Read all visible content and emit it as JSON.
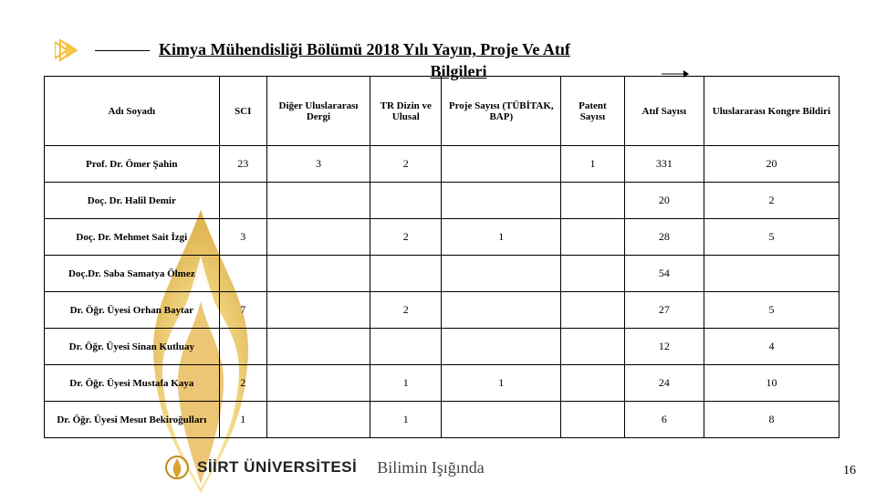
{
  "colors": {
    "accent": "#f4c13a",
    "flame_outer": "#f6e08a",
    "flame_inner": "#d9a32b",
    "text": "#000000",
    "border": "#000000"
  },
  "title": {
    "line1": "Kimya Mühendisliği Bölümü 2018 Yılı Yayın, Proje Ve Atıf",
    "line2": "Bilgileri"
  },
  "table": {
    "columns": [
      "Adı Soyadı",
      "SCI",
      "Diğer Uluslararası Dergi",
      "TR Dizin ve Ulusal",
      "Proje Sayısı (TÜBİTAK, BAP)",
      "Patent Sayısı",
      "Atıf Sayısı",
      "Uluslararası Kongre Bildiri"
    ],
    "col_widths_pct": [
      22,
      6,
      13,
      9,
      15,
      8,
      10,
      17
    ],
    "rows": [
      {
        "c": [
          "Prof. Dr. Ömer Şahin",
          "23",
          "3",
          "2",
          "",
          "1",
          "331",
          "20"
        ]
      },
      {
        "c": [
          "Doç. Dr. Halil Demir",
          "",
          "",
          "",
          "",
          "",
          "20",
          "2"
        ]
      },
      {
        "c": [
          "Doç. Dr. Mehmet Sait İzgi",
          "3",
          "",
          "2",
          "1",
          "",
          "28",
          "5"
        ]
      },
      {
        "c": [
          "Doç.Dr. Saba Samatya Ölmez",
          "",
          "",
          "",
          "",
          "",
          "54",
          ""
        ]
      },
      {
        "c": [
          "Dr. Öğr. Üyesi Orhan Baytar",
          "7",
          "",
          "2",
          "",
          "",
          "27",
          "5"
        ]
      },
      {
        "c": [
          "Dr. Öğr. Üyesi Sinan Kutluay",
          "",
          "",
          "",
          "",
          "",
          "12",
          "4"
        ]
      },
      {
        "c": [
          "Dr. Öğr. Üyesi Mustafa Kaya",
          "2",
          "",
          "1",
          "1",
          "",
          "24",
          "10"
        ]
      },
      {
        "c": [
          "Dr. Öğr. Üyesi Mesut Bekiroğulları",
          "1",
          "",
          "1",
          "",
          "",
          "6",
          "8"
        ]
      }
    ]
  },
  "footer": {
    "university": "SİİRT ÜNİVERSİTESİ",
    "tagline": "Bilimin Işığında"
  },
  "page_number": "16"
}
